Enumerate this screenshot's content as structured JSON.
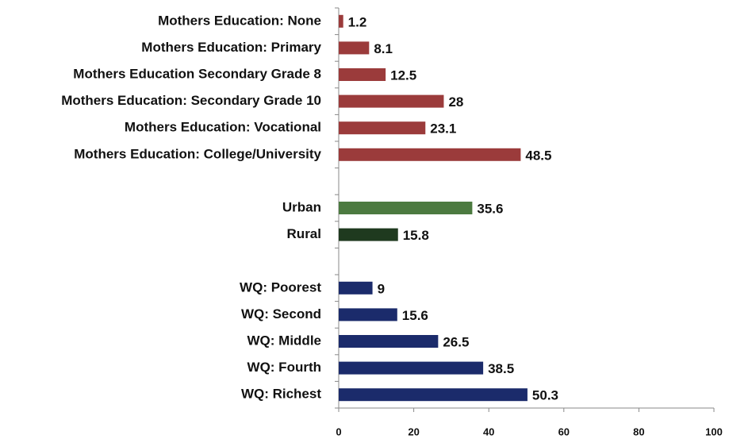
{
  "chart_data": {
    "type": "hbar",
    "categories": [
      "Mothers Education: None",
      "Mothers Education: Primary",
      "Mothers Education Secondary Grade 8",
      "Mothers Education: Secondary Grade 10",
      "Mothers Education: Vocational",
      "Mothers Education: College/University",
      null,
      "Urban",
      "Rural",
      null,
      "WQ: Poorest",
      "WQ: Second",
      "WQ: Middle",
      "WQ: Fourth",
      "WQ: Richest"
    ],
    "values": [
      1.2,
      8.1,
      12.5,
      28,
      23.1,
      48.5,
      null,
      35.6,
      15.8,
      null,
      9,
      15.6,
      26.5,
      38.5,
      50.3
    ],
    "colors": [
      "#9b3b3b",
      "#9b3b3b",
      "#9b3b3b",
      "#9b3b3b",
      "#9b3b3b",
      "#9b3b3b",
      null,
      "#4c7a40",
      "#1f3a1f",
      null,
      "#1b2b6b",
      "#1b2b6b",
      "#1b2b6b",
      "#1b2b6b",
      "#1b2b6b"
    ],
    "xlim": [
      0,
      100
    ],
    "xticks": [
      0,
      20,
      40,
      60,
      80,
      100
    ]
  }
}
